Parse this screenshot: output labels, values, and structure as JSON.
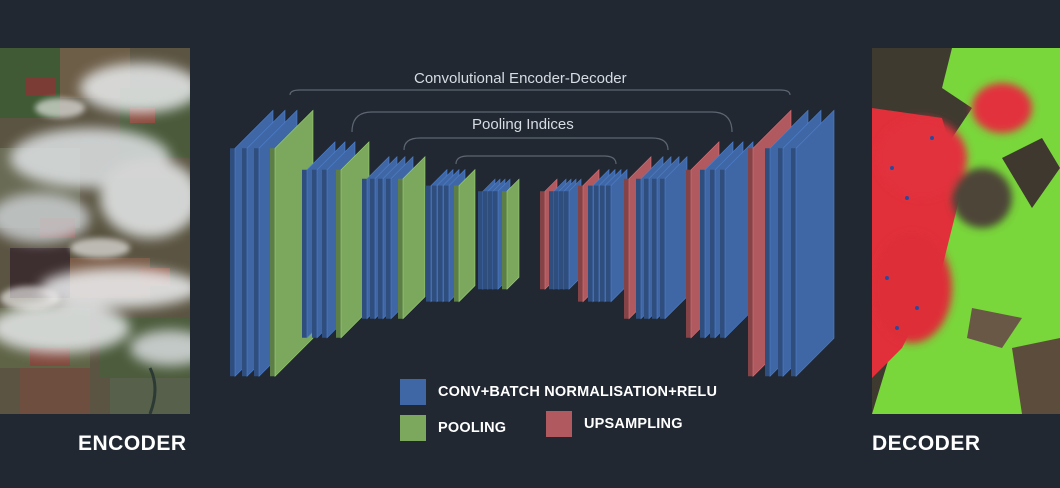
{
  "diagram": {
    "title": "Convolutional Encoder-Decoder",
    "pooling_indices_label": "Pooling Indices",
    "encoder_label": "ENCODER",
    "decoder_label": "DECODER",
    "legend": {
      "conv": "CONV+BATCH NORMALISATION+RELU",
      "pooling": "POOLING",
      "upsampling": "UPSAMPLING"
    },
    "colors": {
      "background": "#212832",
      "conv": "#3f67a6",
      "pooling": "#7ca85e",
      "upsampling": "#b05a5f",
      "connector": "#5d6672",
      "decoder_green": "#7ddc3c",
      "decoder_red": "#e0303a"
    },
    "encoder_stages": [
      [
        "conv",
        "conv",
        "conv",
        "pool"
      ],
      [
        "conv",
        "conv",
        "conv",
        "pool"
      ],
      [
        "conv",
        "conv",
        "conv",
        "conv",
        "pool"
      ],
      [
        "conv",
        "conv",
        "conv",
        "conv",
        "pool"
      ],
      [
        "conv",
        "conv",
        "conv",
        "conv",
        "pool"
      ]
    ],
    "decoder_stages": [
      [
        "up",
        "conv",
        "conv",
        "conv",
        "conv"
      ],
      [
        "up",
        "conv",
        "conv",
        "conv",
        "conv"
      ],
      [
        "up",
        "conv",
        "conv",
        "conv",
        "conv"
      ],
      [
        "up",
        "conv",
        "conv",
        "conv"
      ],
      [
        "up",
        "conv",
        "conv",
        "conv"
      ]
    ]
  }
}
